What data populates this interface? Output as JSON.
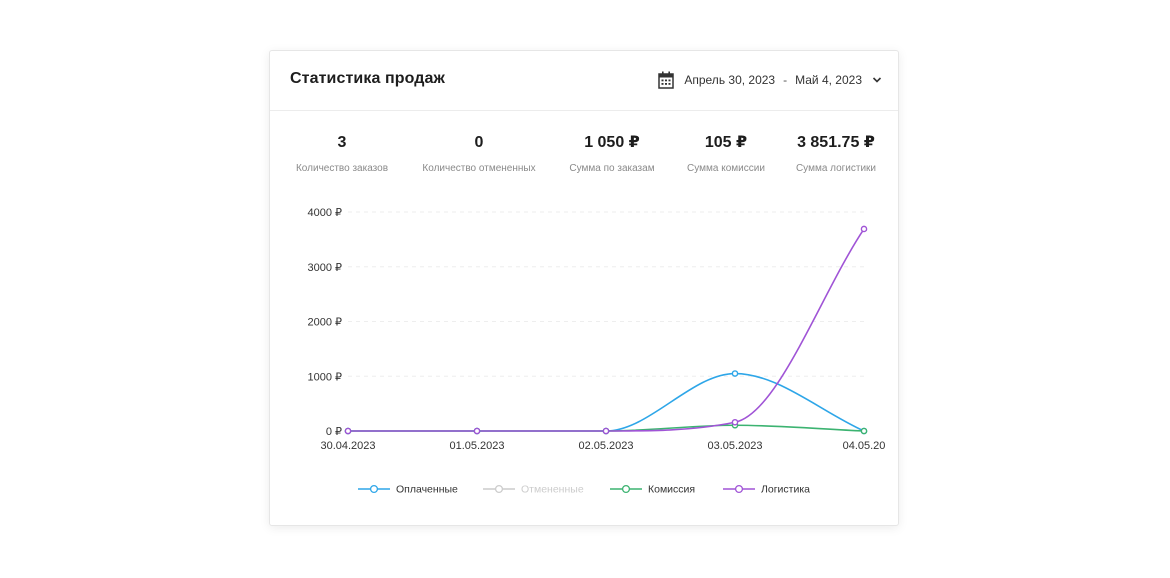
{
  "header": {
    "title": "Статистика продаж",
    "date_from": "Апрель 30, 2023",
    "date_separator": "-",
    "date_to": "Май 4, 2023"
  },
  "stats": [
    {
      "value": "3",
      "label": "Количество заказов"
    },
    {
      "value": "0",
      "label": "Количество отмененных"
    },
    {
      "value": "1 050 ₽",
      "label": "Сумма по заказам"
    },
    {
      "value": "105 ₽",
      "label": "Сумма комиссии"
    },
    {
      "value": "3 851.75 ₽",
      "label": "Сумма логистики"
    }
  ],
  "chart_data": {
    "type": "line",
    "title": "",
    "xlabel": "",
    "ylabel": "",
    "x": [
      "30.04.2023",
      "01.05.2023",
      "02.05.2023",
      "03.05.2023",
      "04.05.20"
    ],
    "ylim": [
      0,
      4000
    ],
    "yticks": [
      0,
      1000,
      2000,
      3000,
      4000
    ],
    "ytick_labels": [
      "0 ₽",
      "1000 ₽",
      "2000 ₽",
      "3000 ₽",
      "4000 ₽"
    ],
    "grid": true,
    "legend_position": "bottom",
    "series": [
      {
        "name": "Оплаченные",
        "color": "#2ea6e8",
        "hidden": false,
        "values": [
          0,
          0,
          0,
          1050,
          0
        ]
      },
      {
        "name": "Отмененные",
        "color": "#cccccc",
        "hidden": true,
        "values": [
          0,
          0,
          0,
          0,
          0
        ]
      },
      {
        "name": "Комиссия",
        "color": "#3cb371",
        "hidden": false,
        "values": [
          0,
          0,
          0,
          105,
          0
        ]
      },
      {
        "name": "Логистика",
        "color": "#a054d6",
        "hidden": false,
        "values": [
          0,
          0,
          0,
          160,
          3690
        ]
      }
    ]
  }
}
